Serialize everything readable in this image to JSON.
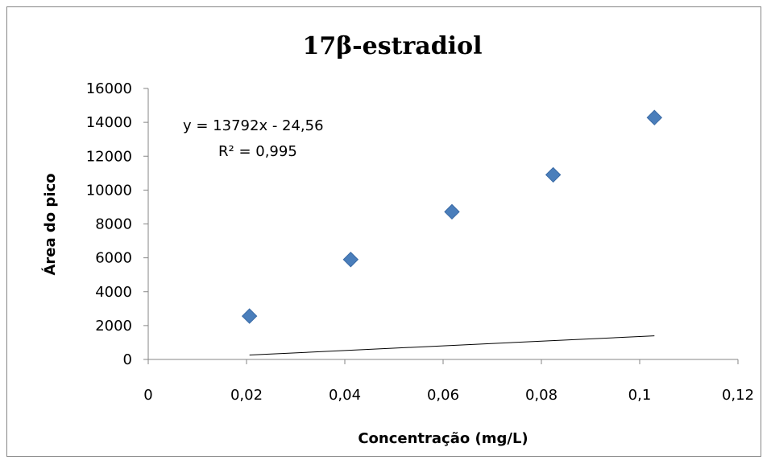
{
  "chart_data": {
    "type": "scatter",
    "title": "17β-estradiol",
    "xlabel": "Concentração (mg/L)",
    "ylabel": "Área do pico",
    "xlim": [
      0,
      0.12
    ],
    "ylim": [
      0,
      16000
    ],
    "x_ticks": [
      0,
      0.02,
      0.04,
      0.06,
      0.08,
      0.1,
      0.12
    ],
    "x_tick_labels": [
      "0",
      "0,02",
      "0,04",
      "0,06",
      "0,08",
      "0,1",
      "0,12"
    ],
    "y_ticks": [
      0,
      2000,
      4000,
      6000,
      8000,
      10000,
      12000,
      14000,
      16000
    ],
    "y_tick_labels": [
      "0",
      "2000",
      "4000",
      "6000",
      "8000",
      "10000",
      "12000",
      "14000",
      "16000"
    ],
    "grid": false,
    "legend": "none",
    "series": [
      {
        "marker": "diamond",
        "color": "#4A7EBB",
        "x": [
          0.0206,
          0.0412,
          0.0618,
          0.0824,
          0.103
        ],
        "y": [
          2560,
          5900,
          8720,
          10900,
          14280
        ]
      }
    ],
    "trendline": {
      "type": "linear",
      "slope": 13792,
      "intercept": -24.56,
      "x_range": [
        0.0206,
        0.103
      ],
      "color": "#000000"
    },
    "annotations": {
      "equation": "y = 13792x - 24,56",
      "r_squared": "R² = 0,995"
    }
  }
}
